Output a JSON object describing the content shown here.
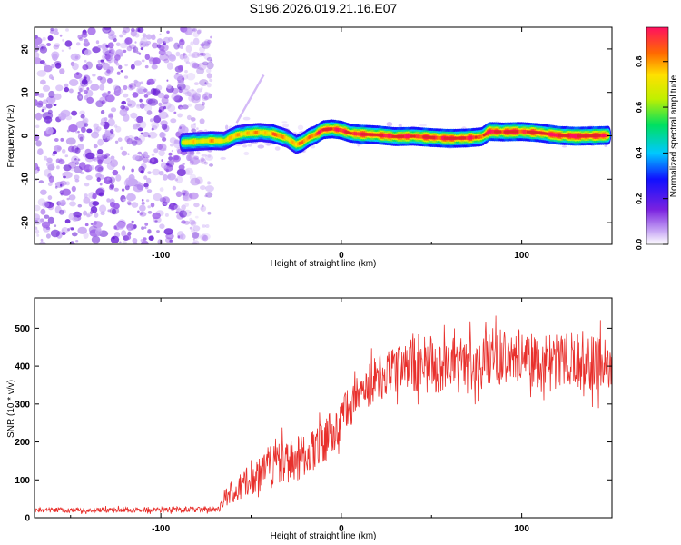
{
  "title": "S196.2026.019.21.16.E07",
  "colors": {
    "snr_line": "#e8302c",
    "ridge_core": "#e02828",
    "scatter_light": "#c9a9f5",
    "scatter_dark": "#6a1fd6"
  },
  "chart_data": [
    {
      "type": "heatmap",
      "name": "spectrogram",
      "xlabel": "Height of straight line (km)",
      "ylabel": "Frequency (Hz)",
      "xlim": [
        -170,
        150
      ],
      "ylim": [
        -25,
        25
      ],
      "xticks": [
        -100,
        0,
        100
      ],
      "xtick_labels": [
        "-100",
        "0",
        "100"
      ],
      "yticks": [
        -20,
        -10,
        0,
        10,
        20
      ],
      "ytick_labels": [
        "-20",
        "-10",
        "0",
        "10",
        "20"
      ],
      "noise_region_x": [
        -170,
        -72
      ],
      "ridge": {
        "x": [
          -88,
          -80,
          -72,
          -65,
          -58,
          -52,
          -45,
          -38,
          -30,
          -25,
          -22,
          -18,
          -14,
          -10,
          -5,
          0,
          5,
          10,
          20,
          30,
          40,
          50,
          60,
          70,
          78,
          82,
          90,
          100,
          110,
          120,
          130,
          140,
          148
        ],
        "y": [
          -1.5,
          -1.3,
          -1.1,
          -1.2,
          0.2,
          0.6,
          0.8,
          0.5,
          -0.6,
          -2.0,
          -1.6,
          -0.4,
          0.3,
          1.4,
          1.6,
          1.3,
          0.6,
          0.4,
          0.2,
          -0.2,
          -0.1,
          -0.4,
          -0.6,
          -0.5,
          -0.2,
          1.0,
          0.9,
          1.0,
          0.7,
          0.1,
          -0.1,
          0.0,
          0.1
        ],
        "amplitude": [
          0.5,
          0.55,
          0.6,
          0.55,
          0.6,
          0.65,
          0.6,
          0.7,
          0.65,
          0.6,
          0.7,
          0.8,
          0.75,
          0.85,
          0.9,
          0.8,
          0.85,
          0.9,
          0.85,
          0.9,
          0.85,
          0.9,
          0.9,
          0.85,
          0.8,
          0.9,
          0.95,
          0.9,
          0.85,
          0.95,
          1.0,
          0.95,
          0.9
        ]
      },
      "colorbar": {
        "label": "Normalized spectral amplitude",
        "range": [
          0,
          0.95
        ],
        "ticks": [
          0.0,
          0.2,
          0.4,
          0.6,
          0.8
        ],
        "tick_labels": [
          "0.0",
          "0.2",
          "0.4",
          "0.6",
          "0.8"
        ]
      }
    },
    {
      "type": "line",
      "name": "snr",
      "xlabel": "Height of straight line (km)",
      "ylabel": "SNR (10 * v/v)",
      "xlim": [
        -170,
        150
      ],
      "ylim": [
        0,
        580
      ],
      "xticks": [
        -100,
        0,
        100
      ],
      "xtick_labels": [
        "-100",
        "0",
        "100"
      ],
      "yticks": [
        0,
        100,
        200,
        300,
        400,
        500
      ],
      "ytick_labels": [
        "0",
        "100",
        "200",
        "300",
        "400",
        "500"
      ],
      "series": [
        {
          "name": "SNR",
          "envelope_x": [
            -170,
            -72,
            -68,
            -60,
            -50,
            -40,
            -30,
            -20,
            -10,
            0,
            10,
            20,
            30,
            40,
            50,
            60,
            70,
            80,
            90,
            100,
            110,
            120,
            130,
            140,
            150
          ],
          "envelope_mean": [
            20,
            22,
            25,
            70,
            105,
            130,
            150,
            165,
            200,
            260,
            320,
            370,
            390,
            405,
            400,
            395,
            410,
            420,
            425,
            430,
            405,
            410,
            415,
            410,
            400
          ],
          "envelope_spread": [
            12,
            14,
            18,
            60,
            90,
            110,
            110,
            110,
            110,
            110,
            100,
            110,
            120,
            130,
            130,
            135,
            135,
            130,
            130,
            130,
            135,
            140,
            140,
            145,
            140
          ]
        }
      ]
    }
  ]
}
